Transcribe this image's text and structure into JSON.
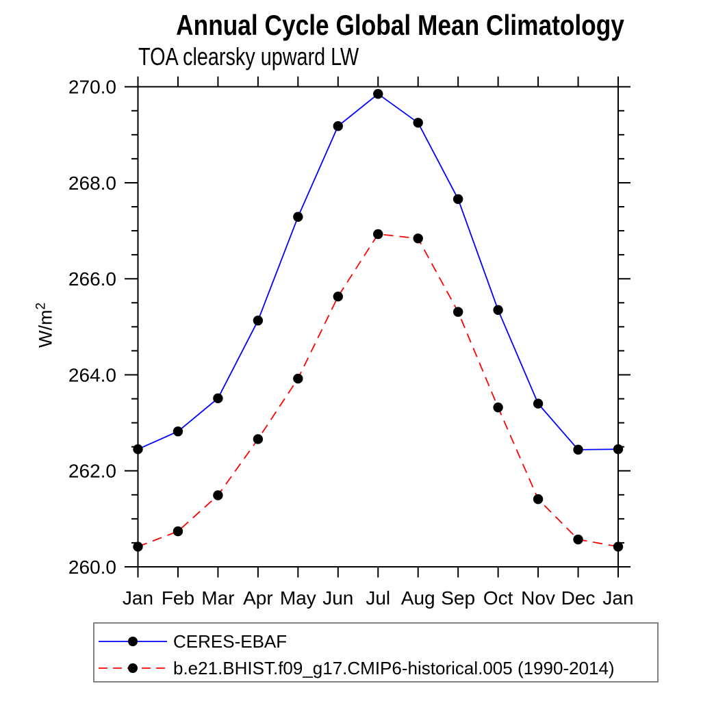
{
  "chart_data": {
    "type": "line",
    "title": "Annual Cycle Global Mean Climatology",
    "subtitle": "TOA clearsky upward LW",
    "ylabel_base": "W/m",
    "ylabel_exponent": "2",
    "categories": [
      "Jan",
      "Feb",
      "Mar",
      "Apr",
      "May",
      "Jun",
      "Jul",
      "Aug",
      "Sep",
      "Oct",
      "Nov",
      "Dec",
      "Jan"
    ],
    "ylim": [
      260.0,
      270.0
    ],
    "y_major_step": 2.0,
    "y_minor_step": 0.5,
    "y_tick_labels": [
      "260.0",
      "262.0",
      "264.0",
      "266.0",
      "268.0",
      "270.0"
    ],
    "grid": false,
    "legend_position": "bottom-left",
    "axis_color": "#000000",
    "marker": "filled-circle",
    "series": [
      {
        "name": "CERES-EBAF",
        "line_color": "#0000ff",
        "line_style": "solid",
        "marker_color": "#000000",
        "values": [
          262.45,
          262.82,
          263.51,
          265.13,
          267.29,
          269.18,
          269.85,
          269.25,
          267.66,
          265.35,
          263.4,
          262.44,
          262.45
        ]
      },
      {
        "name": "b.e21.BHIST.f09_g17.CMIP6-historical.005 (1990-2014)",
        "line_color": "#ff0000",
        "line_style": "dashed",
        "marker_color": "#000000",
        "values": [
          260.42,
          260.74,
          261.49,
          262.66,
          263.92,
          265.63,
          266.93,
          266.84,
          265.31,
          263.32,
          261.41,
          260.57,
          260.42
        ]
      }
    ]
  }
}
